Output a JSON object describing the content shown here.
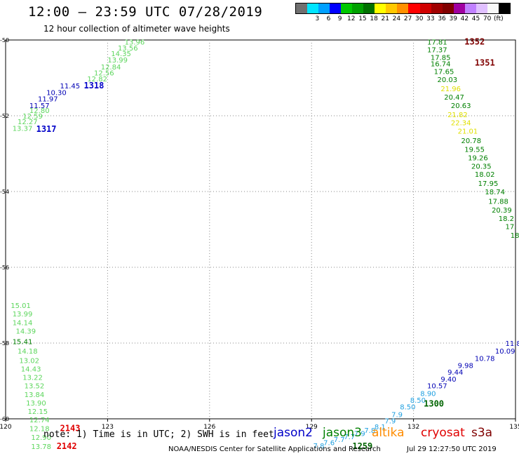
{
  "title": "12:00 – 23:59 UTC 07/28/2019",
  "subtitle": "12 hour collection of altimeter wave heights",
  "colorbar": {
    "colors": [
      "#707070",
      "#00e5ff",
      "#00a0ff",
      "#0000ff",
      "#00c800",
      "#00a000",
      "#007000",
      "#ffff00",
      "#ffc800",
      "#ff9000",
      "#ff0000",
      "#d00000",
      "#a00000",
      "#800000",
      "#a000a0",
      "#c080ff",
      "#e0c0ff",
      "#f8f8f8",
      "#000000"
    ],
    "labels": [
      "3",
      "6",
      "9",
      "12",
      "15",
      "18",
      "21",
      "24",
      "27",
      "30",
      "33",
      "36",
      "39",
      "42",
      "45",
      "70",
      "(ft)"
    ]
  },
  "map": {
    "lon_range": [
      120,
      135
    ],
    "lat_range": [
      -60,
      -50
    ],
    "lon_ticks": [
      "120",
      "123",
      "126",
      "129",
      "132",
      "135"
    ],
    "lat_ticks": [
      "-50",
      "-52",
      "-54",
      "-56",
      "-58",
      "-60"
    ],
    "grid": "dotted"
  },
  "tracks": [
    {
      "sat": "jason3-light",
      "color": "#5cd65c",
      "points": [
        {
          "v": "13.96",
          "lon": 123.5,
          "lat": -50.05
        },
        {
          "v": "13.56",
          "lon": 123.3,
          "lat": -50.2
        },
        {
          "v": "14.35",
          "lon": 123.1,
          "lat": -50.35
        },
        {
          "v": "13.99",
          "lon": 123.0,
          "lat": -50.52
        },
        {
          "v": "12.84",
          "lon": 122.8,
          "lat": -50.7
        },
        {
          "v": "12.56",
          "lon": 122.6,
          "lat": -50.86
        },
        {
          "v": "12.82",
          "lon": 122.4,
          "lat": -51.02
        },
        {
          "v": "12.80",
          "lon": 120.7,
          "lat": -51.85
        },
        {
          "v": "12.59",
          "lon": 120.5,
          "lat": -52.0
        },
        {
          "v": "12.27",
          "lon": 120.35,
          "lat": -52.15
        },
        {
          "v": "13.37",
          "lon": 120.2,
          "lat": -52.32
        },
        {
          "v": "15.01",
          "lon": 120.15,
          "lat": -57.0
        },
        {
          "v": "13.99",
          "lon": 120.2,
          "lat": -57.22
        },
        {
          "v": "14.14",
          "lon": 120.2,
          "lat": -57.45
        },
        {
          "v": "14.39",
          "lon": 120.3,
          "lat": -57.68
        },
        {
          "v": "14.18",
          "lon": 120.35,
          "lat": -58.2
        },
        {
          "v": "13.02",
          "lon": 120.4,
          "lat": -58.45
        },
        {
          "v": "14.43",
          "lon": 120.45,
          "lat": -58.68
        },
        {
          "v": "13.22",
          "lon": 120.5,
          "lat": -58.9
        },
        {
          "v": "13.52",
          "lon": 120.55,
          "lat": -59.12
        },
        {
          "v": "13.84",
          "lon": 120.55,
          "lat": -59.35
        },
        {
          "v": "13.90",
          "lon": 120.6,
          "lat": -59.57
        },
        {
          "v": "12.15",
          "lon": 120.65,
          "lat": -59.8
        },
        {
          "v": "12.74",
          "lon": 120.7,
          "lat": -60.02
        },
        {
          "v": "12.18",
          "lon": 120.7,
          "lat": -60.25
        },
        {
          "v": "12.90",
          "lon": 120.75,
          "lat": -60.48
        },
        {
          "v": "13.78",
          "lon": 120.75,
          "lat": -60.72
        }
      ]
    },
    {
      "sat": "jason3-dark",
      "color": "#008000",
      "points": [
        {
          "v": "15.41",
          "lon": 120.2,
          "lat": -57.95
        }
      ]
    },
    {
      "sat": "jason2",
      "color": "#0000b4",
      "points": [
        {
          "v": "11.45",
          "lon": 121.6,
          "lat": -51.2
        },
        {
          "v": "10.30",
          "lon": 121.2,
          "lat": -51.38
        },
        {
          "v": "11.97",
          "lon": 120.95,
          "lat": -51.55
        },
        {
          "v": "11.57",
          "lon": 120.7,
          "lat": -51.72
        },
        {
          "v": "11.8",
          "lon": 134.7,
          "lat": -58.0
        },
        {
          "v": "10.09",
          "lon": 134.4,
          "lat": -58.2
        },
        {
          "v": "10.78",
          "lon": 133.8,
          "lat": -58.4
        },
        {
          "v": "9.98",
          "lon": 133.3,
          "lat": -58.58
        },
        {
          "v": "9.44",
          "lon": 133.0,
          "lat": -58.76
        },
        {
          "v": "9.40",
          "lon": 132.8,
          "lat": -58.94
        },
        {
          "v": "10.57",
          "lon": 132.4,
          "lat": -59.12
        }
      ]
    },
    {
      "sat": "jason2-light",
      "color": "#20a0e0",
      "points": [
        {
          "v": "8.90",
          "lon": 132.2,
          "lat": -59.32
        },
        {
          "v": "8.50",
          "lon": 131.9,
          "lat": -59.5
        },
        {
          "v": "8.50",
          "lon": 131.6,
          "lat": -59.68
        }
      ]
    },
    {
      "sat": "jason3",
      "color": "#008000",
      "points": [
        {
          "v": "17.81",
          "lon": 132.4,
          "lat": -50.05
        },
        {
          "v": "17.37",
          "lon": 132.4,
          "lat": -50.25
        },
        {
          "v": "17.85",
          "lon": 132.5,
          "lat": -50.45
        },
        {
          "v": "16.74",
          "lon": 132.5,
          "lat": -50.62
        },
        {
          "v": "17.65",
          "lon": 132.6,
          "lat": -50.82
        },
        {
          "v": "20.03",
          "lon": 132.7,
          "lat": -51.04
        },
        {
          "v": "20.47",
          "lon": 132.9,
          "lat": -51.5
        },
        {
          "v": "20.63",
          "lon": 133.1,
          "lat": -51.72
        },
        {
          "v": "20.78",
          "lon": 133.4,
          "lat": -52.65
        },
        {
          "v": "19.55",
          "lon": 133.5,
          "lat": -52.88
        },
        {
          "v": "19.26",
          "lon": 133.6,
          "lat": -53.1
        },
        {
          "v": "20.35",
          "lon": 133.7,
          "lat": -53.32
        },
        {
          "v": "18.02",
          "lon": 133.8,
          "lat": -53.54
        },
        {
          "v": "17.95",
          "lon": 133.9,
          "lat": -53.78
        },
        {
          "v": "18.74",
          "lon": 134.1,
          "lat": -54.0
        },
        {
          "v": "17.88",
          "lon": 134.2,
          "lat": -54.25
        },
        {
          "v": "20.39",
          "lon": 134.3,
          "lat": -54.48
        },
        {
          "v": "18.2",
          "lon": 134.5,
          "lat": -54.7
        },
        {
          "v": "17.",
          "lon": 134.7,
          "lat": -54.92
        },
        {
          "v": "18",
          "lon": 134.85,
          "lat": -55.15
        }
      ]
    },
    {
      "sat": "altika-yellow",
      "color": "#e0e000",
      "points": [
        {
          "v": "21.96",
          "lon": 132.8,
          "lat": -51.28
        },
        {
          "v": "21.82",
          "lon": 133.0,
          "lat": -51.96
        },
        {
          "v": "22.34",
          "lon": 133.1,
          "lat": -52.18
        },
        {
          "v": "21.01",
          "lon": 133.3,
          "lat": -52.4
        }
      ]
    }
  ],
  "time_labels": [
    {
      "v": "1318",
      "color": "#0000c8",
      "lon": 122.3,
      "lat": -51.2
    },
    {
      "v": "1317",
      "color": "#0000c8",
      "lon": 120.9,
      "lat": -52.35
    },
    {
      "v": "1352",
      "color": "#800000",
      "lon": 133.5,
      "lat": -50.05
    },
    {
      "v": "1351",
      "color": "#800000",
      "lon": 133.8,
      "lat": -50.6
    },
    {
      "v": "2143",
      "color": "#e00000",
      "lon": 121.6,
      "lat": -60.25
    },
    {
      "v": "2142",
      "color": "#e00000",
      "lon": 121.5,
      "lat": -60.72
    },
    {
      "v": "1300",
      "color": "#006400",
      "lon": 132.3,
      "lat": -59.6
    },
    {
      "v": "1259",
      "color": "#006400",
      "lon": 130.2,
      "lat": -60.72
    }
  ],
  "note": "note: 1) Time is in UTC; 2) SWH is in feet",
  "legend": [
    {
      "label": "jason2",
      "color": "#0000c8"
    },
    {
      "label": "jason3",
      "color": "#008000"
    },
    {
      "label": "altika",
      "color": "#ff8c00"
    },
    {
      "label": "cryosat",
      "color": "#e00000"
    },
    {
      "label": "s3a",
      "color": "#800000"
    }
  ],
  "footer": "NOAA/NESDIS Center for Satellite Applications and Research",
  "footer_time": "Jul 29 12:27:50 UTC 2019"
}
